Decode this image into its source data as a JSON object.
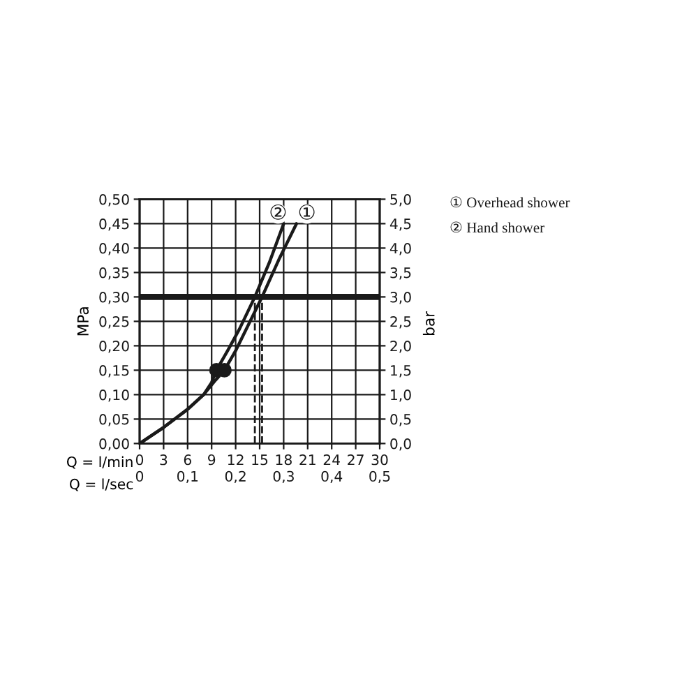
{
  "chart_data": {
    "type": "line",
    "xlabel": "Q = l/min",
    "x2label": "Q = l/sec",
    "ylabel": "MPa",
    "y2label": "bar",
    "xlim": [
      0,
      30
    ],
    "xticks": [
      0,
      3,
      6,
      9,
      12,
      15,
      18,
      21,
      24,
      27,
      30
    ],
    "x2lim": [
      0,
      0.5
    ],
    "x2ticks": [
      0,
      {
        "value": 0.1,
        "label": "0,1"
      },
      {
        "value": 0.2,
        "label": "0,2"
      },
      {
        "value": 0.3,
        "label": "0,3"
      },
      {
        "value": 0.4,
        "label": "0,4"
      },
      {
        "value": 0.5,
        "label": "0,5"
      }
    ],
    "ylim": [
      0,
      0.5
    ],
    "yticks": [
      {
        "value": 0,
        "label": "0,00"
      },
      {
        "value": 0.05,
        "label": "0,05"
      },
      {
        "value": 0.1,
        "label": "0,10"
      },
      {
        "value": 0.15,
        "label": "0,15"
      },
      {
        "value": 0.2,
        "label": "0,20"
      },
      {
        "value": 0.25,
        "label": "0,25"
      },
      {
        "value": 0.3,
        "label": "0,30"
      },
      {
        "value": 0.35,
        "label": "0,35"
      },
      {
        "value": 0.4,
        "label": "0,40"
      },
      {
        "value": 0.45,
        "label": "0,45"
      },
      {
        "value": 0.5,
        "label": "0,50"
      }
    ],
    "y2lim": [
      0,
      5
    ],
    "y2ticks": [
      {
        "value": 0,
        "label": "0,0"
      },
      {
        "value": 0.5,
        "label": "0,5"
      },
      {
        "value": 1,
        "label": "1,0"
      },
      {
        "value": 1.5,
        "label": "1,5"
      },
      {
        "value": 2,
        "label": "2,0"
      },
      {
        "value": 2.5,
        "label": "2,5"
      },
      {
        "value": 3,
        "label": "3,0"
      },
      {
        "value": 3.5,
        "label": "3,5"
      },
      {
        "value": 4,
        "label": "4,0"
      },
      {
        "value": 4.5,
        "label": "4,5"
      },
      {
        "value": 5,
        "label": "5,0"
      }
    ],
    "grid": true,
    "series": [
      {
        "color": "#1a1a1a",
        "line_style": "solid",
        "x": [
          0,
          3,
          6,
          8,
          9.5,
          10.6,
          12,
          13.5,
          15.3,
          17.5,
          19.6
        ],
        "values": [
          0,
          0.033,
          0.07,
          0.1,
          0.13,
          0.15,
          0.19,
          0.24,
          0.3,
          0.38,
          0.45
        ]
      },
      {
        "color": "#1a1a1a",
        "line_style": "solid",
        "x": [
          0,
          3,
          6,
          8,
          9,
          9.6,
          11,
          12.5,
          14.4,
          16.2,
          18
        ],
        "values": [
          0,
          0.033,
          0.07,
          0.1,
          0.125,
          0.15,
          0.19,
          0.235,
          0.3,
          0.37,
          0.45
        ]
      },
      {
        "color": "#1a1a1a",
        "line_style": "dashed",
        "x": [
          14.4,
          14.4
        ],
        "values": [
          0,
          0.3
        ]
      },
      {
        "color": "#1a1a1a",
        "line_style": "dashed",
        "x": [
          15.3,
          15.3
        ],
        "values": [
          0,
          0.3
        ]
      },
      {
        "type": "scatter",
        "color": "#1a1a1a",
        "marker": "circle",
        "x": [
          9.6,
          10.6
        ],
        "values": [
          0.15,
          0.15
        ]
      }
    ],
    "ref_lines": [
      {
        "axis": "y",
        "value": 0.3,
        "color": "#1a1a1a"
      }
    ],
    "annotations": [
      {
        "text": "②",
        "x": 17.3,
        "y": 0.47
      },
      {
        "text": "①",
        "x": 20.9,
        "y": 0.47
      },
      "① Overhead shower",
      "② Hand shower"
    ]
  }
}
